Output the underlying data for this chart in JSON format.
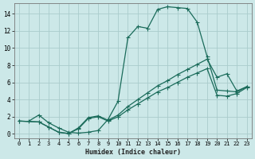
{
  "xlabel": "Humidex (Indice chaleur)",
  "background_color": "#cce8e8",
  "grid_color": "#aacccc",
  "line_color": "#1a6b5a",
  "xlim": [
    -0.5,
    23.5
  ],
  "ylim": [
    -0.5,
    15.2
  ],
  "xticks": [
    0,
    1,
    2,
    3,
    4,
    5,
    6,
    7,
    8,
    9,
    10,
    11,
    12,
    13,
    14,
    15,
    16,
    17,
    18,
    19,
    20,
    21,
    22,
    23
  ],
  "yticks": [
    0,
    2,
    4,
    6,
    8,
    10,
    12,
    14
  ],
  "line1_x": [
    1,
    2,
    3,
    4,
    5,
    6,
    7,
    8,
    9,
    10,
    11,
    12,
    13,
    14,
    15,
    16,
    17,
    18,
    19,
    20,
    21,
    22,
    23
  ],
  "line1_y": [
    1.5,
    2.2,
    1.3,
    0.7,
    0.2,
    0.1,
    0.2,
    0.4,
    1.7,
    3.8,
    11.2,
    12.5,
    12.3,
    14.5,
    14.8,
    14.7,
    14.6,
    13.0,
    9.0,
    5.1,
    5.0,
    4.9,
    5.5
  ],
  "line2_x": [
    0,
    2,
    3,
    4,
    5,
    6,
    7,
    8,
    9,
    10,
    11,
    12,
    13,
    14,
    15,
    16,
    17,
    18,
    19,
    20,
    21,
    22,
    23
  ],
  "line2_y": [
    1.5,
    1.4,
    0.8,
    0.2,
    0.05,
    0.7,
    1.9,
    2.1,
    1.6,
    2.2,
    3.2,
    4.0,
    4.8,
    5.6,
    6.2,
    6.9,
    7.5,
    8.1,
    8.7,
    6.6,
    7.0,
    5.0,
    5.5
  ],
  "line3_x": [
    0,
    2,
    3,
    4,
    5,
    6,
    7,
    8,
    9,
    10,
    11,
    12,
    13,
    14,
    15,
    16,
    17,
    18,
    19,
    20,
    21,
    22,
    23
  ],
  "line3_y": [
    1.5,
    1.4,
    0.8,
    0.2,
    0.05,
    0.6,
    1.8,
    2.0,
    1.5,
    2.0,
    2.8,
    3.5,
    4.2,
    4.9,
    5.4,
    6.0,
    6.6,
    7.1,
    7.6,
    4.5,
    4.4,
    4.7,
    5.4
  ]
}
